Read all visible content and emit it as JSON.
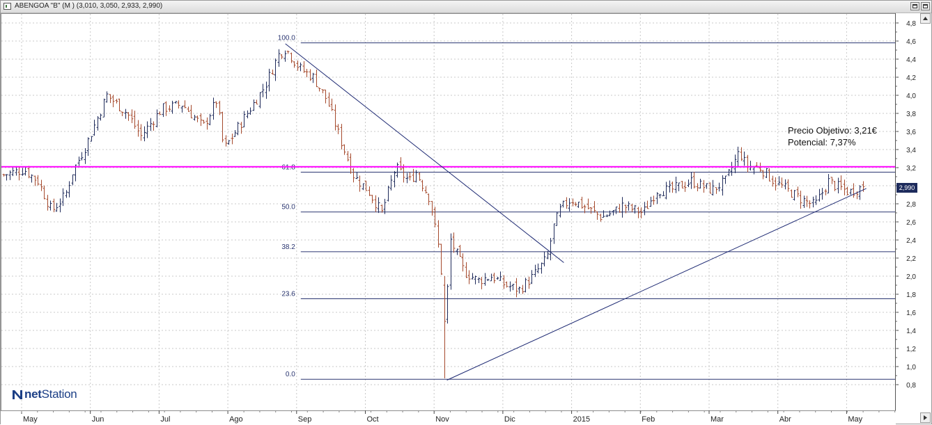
{
  "window": {
    "title": "ABENGOA \"B\" (M ) (3,010, 3,050, 2,933, 2,990)"
  },
  "logo": {
    "prefix": "net",
    "suffix": "Station"
  },
  "annotation": {
    "line1": "Precio Objetivo: 3,21€",
    "line2": "Potencial: 7,37%"
  },
  "last_price_label": "2,990",
  "colors": {
    "up_bar": "#1e2a5a",
    "down_bar": "#a5492c",
    "fib_line": "#2a3570",
    "trend_line": "#1c2872",
    "target_line": "#ff00ff",
    "grid": "#c8c8c8"
  },
  "chart_data": {
    "type": "ohlc",
    "x_axis": {
      "tick_labels": [
        "May",
        "Jun",
        "Jul",
        "Ago",
        "Sep",
        "Oct",
        "Nov",
        "Dic",
        "2015",
        "Feb",
        "Mar",
        "Abr",
        "May"
      ]
    },
    "y_axis": {
      "range": [
        0.7,
        4.9
      ],
      "tick_labels": [
        "0,8",
        "1,0",
        "1,2",
        "1,4",
        "1,6",
        "1,8",
        "2,0",
        "2,2",
        "2,4",
        "2,6",
        "2,8",
        "3,0",
        "3,2",
        "3,4",
        "3,6",
        "3,8",
        "4,0",
        "4,2",
        "4,4",
        "4,6",
        "4,8"
      ],
      "tick_values": [
        0.8,
        1.0,
        1.2,
        1.4,
        1.6,
        1.8,
        2.0,
        2.2,
        2.4,
        2.6,
        2.8,
        3.0,
        3.2,
        3.4,
        3.6,
        3.8,
        4.0,
        4.2,
        4.4,
        4.6,
        4.8
      ]
    },
    "grid": true,
    "fibonacci": {
      "start_month_index": 4,
      "levels": [
        {
          "label": "100.0",
          "value": 4.58
        },
        {
          "label": "61.8",
          "value": 3.15
        },
        {
          "label": "50.0",
          "value": 2.71
        },
        {
          "label": "38.2",
          "value": 2.27
        },
        {
          "label": "23.6",
          "value": 1.75
        },
        {
          "label": "0.0",
          "value": 0.86
        }
      ]
    },
    "target_line": {
      "value": 3.21
    },
    "trend_lines": [
      {
        "from": {
          "month": 4.1,
          "value": 4.57
        },
        "to": {
          "month": 8.15,
          "value": 2.15
        }
      },
      {
        "from": {
          "month": 6.45,
          "value": 0.85
        },
        "to": {
          "month": 12.55,
          "value": 2.97
        }
      }
    ],
    "price_path": {
      "month_points": [
        0.0,
        0.3,
        0.5,
        0.7,
        0.9,
        1.0,
        1.2,
        1.5,
        1.8,
        2.0,
        2.3,
        2.6,
        2.9,
        3.1,
        3.2,
        3.5,
        3.8,
        4.0,
        4.1,
        4.3,
        4.5,
        4.7,
        4.9,
        5.1,
        5.3,
        5.5,
        5.7,
        5.9,
        6.0,
        6.2,
        6.35,
        6.42,
        6.5,
        6.7,
        6.9,
        7.1,
        7.3,
        7.5,
        7.7,
        7.9,
        8.0,
        8.1,
        8.25,
        8.5,
        8.7,
        8.9,
        9.0,
        9.3,
        9.5,
        9.7,
        10.0,
        10.3,
        10.5,
        10.7,
        10.8,
        11.0,
        11.2,
        11.4,
        11.6,
        11.8,
        12.0,
        12.1,
        12.3,
        12.5
      ],
      "closes": [
        3.12,
        3.18,
        3.05,
        2.72,
        2.9,
        3.15,
        3.45,
        4.0,
        3.8,
        3.55,
        3.85,
        3.9,
        3.65,
        3.95,
        3.4,
        3.75,
        4.1,
        4.45,
        4.52,
        4.3,
        4.2,
        3.95,
        3.5,
        3.1,
        2.95,
        2.7,
        3.2,
        3.05,
        3.15,
        2.85,
        2.2,
        1.45,
        2.4,
        2.05,
        1.95,
        2.0,
        1.9,
        1.85,
        2.0,
        2.2,
        2.55,
        2.75,
        2.85,
        2.75,
        2.65,
        2.72,
        2.78,
        2.7,
        2.95,
        2.95,
        3.05,
        2.95,
        3.05,
        3.38,
        3.22,
        3.2,
        3.05,
        2.95,
        2.85,
        2.78,
        3.05,
        3.0,
        2.93,
        2.99
      ]
    },
    "last": {
      "open": 3.01,
      "high": 3.05,
      "low": 2.933,
      "close": 2.99
    }
  }
}
